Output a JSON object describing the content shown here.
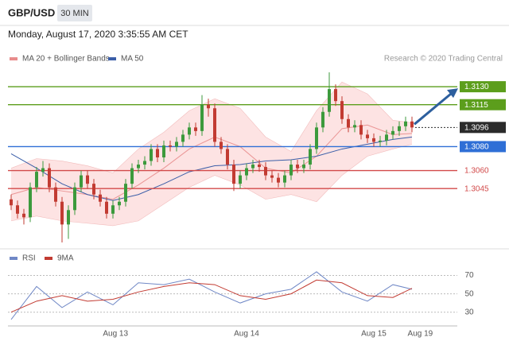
{
  "header": {
    "symbol": "GBP/USD",
    "interval": "30 MIN",
    "datetime": "Monday, August 17, 2020 3:35:55 AM CET"
  },
  "chart_data": [
    {
      "type": "candlestick",
      "credit": "Research © 2020 Trading Central",
      "up_color": "#3c9a3c",
      "down_color": "#c23b32",
      "open": [
        1.3036,
        1.3031,
        1.3024,
        1.3021,
        1.3046,
        1.3059,
        1.3062,
        1.3046,
        1.3034,
        1.3015,
        1.3027,
        1.3046,
        1.3056,
        1.3049,
        1.304,
        1.3034,
        1.3024,
        1.3031,
        1.3034,
        1.3049,
        1.3062,
        1.3065,
        1.3068,
        1.3078,
        1.3071,
        1.3081,
        1.308,
        1.3084,
        1.309,
        1.3096,
        1.3093,
        1.3115,
        1.3112,
        1.3084,
        1.3078,
        1.3065,
        1.3049,
        1.3056,
        1.3062,
        1.3065,
        1.3063,
        1.3056,
        1.3054,
        1.305,
        1.3056,
        1.3065,
        1.3062,
        1.3065,
        1.3078,
        1.3096,
        1.3109,
        1.3128,
        1.3118,
        1.3103,
        1.3096,
        1.3098,
        1.309,
        1.3087,
        1.3084,
        1.3085,
        1.309,
        1.3093,
        1.3097,
        1.3101
      ],
      "high": [
        1.304,
        1.3035,
        1.3028,
        1.305,
        1.3063,
        1.3068,
        1.3066,
        1.305,
        1.3038,
        1.3031,
        1.305,
        1.306,
        1.306,
        1.3053,
        1.3044,
        1.3038,
        1.3035,
        1.3038,
        1.3053,
        1.3066,
        1.3069,
        1.3072,
        1.3082,
        1.3082,
        1.3085,
        1.3085,
        1.3088,
        1.3094,
        1.31,
        1.31,
        1.3123,
        1.312,
        1.3116,
        1.3088,
        1.3082,
        1.3069,
        1.306,
        1.3066,
        1.3069,
        1.3069,
        1.3067,
        1.306,
        1.3058,
        1.306,
        1.3069,
        1.3069,
        1.3069,
        1.3082,
        1.31,
        1.3113,
        1.3142,
        1.3132,
        1.3122,
        1.3107,
        1.3102,
        1.3102,
        1.3094,
        1.3091,
        1.3089,
        1.3094,
        1.3097,
        1.3101,
        1.3105,
        1.3105
      ],
      "low": [
        1.3027,
        1.302,
        1.3015,
        1.3017,
        1.3042,
        1.3055,
        1.3042,
        1.303,
        1.3,
        1.3003,
        1.3023,
        1.3042,
        1.3045,
        1.3036,
        1.303,
        1.302,
        1.302,
        1.3027,
        1.303,
        1.3045,
        1.3058,
        1.3061,
        1.3064,
        1.3067,
        1.3067,
        1.3076,
        1.3076,
        1.308,
        1.3086,
        1.3089,
        1.3089,
        1.3105,
        1.308,
        1.3074,
        1.3061,
        1.3043,
        1.3045,
        1.3052,
        1.3058,
        1.3059,
        1.3052,
        1.305,
        1.3046,
        1.3046,
        1.3052,
        1.3058,
        1.3058,
        1.3061,
        1.3074,
        1.3092,
        1.3105,
        1.3114,
        1.3099,
        1.3092,
        1.3092,
        1.3086,
        1.3083,
        1.308,
        1.308,
        1.3081,
        1.3086,
        1.3089,
        1.3093,
        1.3092
      ],
      "close": [
        1.3031,
        1.3024,
        1.3021,
        1.3046,
        1.3059,
        1.3062,
        1.3046,
        1.3034,
        1.3015,
        1.3027,
        1.3046,
        1.3056,
        1.3049,
        1.304,
        1.3034,
        1.3024,
        1.3031,
        1.3034,
        1.3049,
        1.3062,
        1.3065,
        1.3068,
        1.3078,
        1.3071,
        1.3081,
        1.308,
        1.3084,
        1.309,
        1.3096,
        1.3093,
        1.3115,
        1.3112,
        1.3084,
        1.3078,
        1.3065,
        1.3049,
        1.3056,
        1.3062,
        1.3065,
        1.3063,
        1.3056,
        1.3054,
        1.305,
        1.3056,
        1.3065,
        1.3062,
        1.3065,
        1.3078,
        1.3096,
        1.3109,
        1.3128,
        1.3118,
        1.3103,
        1.3096,
        1.3098,
        1.309,
        1.3087,
        1.3084,
        1.3085,
        1.309,
        1.3093,
        1.3097,
        1.3101,
        1.3096
      ],
      "overlay_x": [
        0,
        4,
        8,
        12,
        16,
        20,
        24,
        28,
        32,
        36,
        40,
        44,
        48,
        52,
        56,
        60,
        63
      ],
      "bollinger": {
        "name": "MA 20 + Bollinger Bands",
        "color": "#e88c8c",
        "fill": "#fde3e3",
        "middle": [
          1.304,
          1.3046,
          1.3043,
          1.304,
          1.3036,
          1.3048,
          1.3062,
          1.3078,
          1.3088,
          1.308,
          1.3062,
          1.3058,
          1.3072,
          1.3095,
          1.3098,
          1.309,
          1.3091
        ],
        "upper": [
          1.3062,
          1.307,
          1.3068,
          1.3064,
          1.3058,
          1.3078,
          1.3092,
          1.311,
          1.312,
          1.3112,
          1.3088,
          1.3076,
          1.311,
          1.3134,
          1.3124,
          1.3102,
          1.31
        ],
        "lower": [
          1.3018,
          1.3022,
          1.3018,
          1.3016,
          1.3014,
          1.3018,
          1.3032,
          1.3046,
          1.3056,
          1.3048,
          1.3036,
          1.304,
          1.3034,
          1.3056,
          1.3072,
          1.3078,
          1.3082
        ]
      },
      "ma50": {
        "name": "MA 50",
        "color": "#3b5ea8",
        "values": [
          1.3074,
          1.3062,
          1.3049,
          1.304,
          1.3035,
          1.304,
          1.3049,
          1.3059,
          1.3064,
          1.3065,
          1.3068,
          1.3069,
          1.3072,
          1.3078,
          1.3082,
          1.3086,
          1.3088
        ]
      },
      "levels": [
        {
          "value": 1.313,
          "label": "1.3130",
          "color": "#5c9e1c",
          "boxed": true,
          "dashed": false
        },
        {
          "value": 1.3115,
          "label": "1.3115",
          "color": "#5c9e1c",
          "boxed": true,
          "dashed": false
        },
        {
          "value": 1.3096,
          "label": "1.3096",
          "color": "#2b2b2b",
          "boxed": true,
          "dashed": true
        },
        {
          "value": 1.308,
          "label": "1.3080",
          "color": "#2f6fd6",
          "boxed": true,
          "dashed": false
        },
        {
          "value": 1.306,
          "label": "1.3060",
          "color": "#d24a4a",
          "boxed": false,
          "dashed": false
        },
        {
          "value": 1.3045,
          "label": "1.3045",
          "color": "#d24a4a",
          "boxed": false,
          "dashed": false
        }
      ],
      "xlim": [
        -0.5,
        67
      ],
      "ylim": [
        1.2998,
        1.3144
      ],
      "xticks": [
        {
          "value": 16.4,
          "label": "Aug 13"
        },
        {
          "value": 37,
          "label": "Aug 14"
        },
        {
          "value": 57,
          "label": "Aug 15"
        },
        {
          "value": 64.3,
          "label": "Aug 19"
        }
      ]
    },
    {
      "type": "line",
      "x": [
        0,
        4,
        8,
        12,
        16,
        20,
        24,
        28,
        32,
        36,
        40,
        44,
        48,
        52,
        56,
        60,
        63
      ],
      "series": [
        {
          "name": "RSI",
          "color": "#7088c6",
          "values": [
            22,
            58,
            35,
            52,
            38,
            62,
            60,
            66,
            52,
            40,
            50,
            55,
            74,
            52,
            42,
            60,
            55
          ]
        },
        {
          "name": "9MA",
          "color": "#c23b32",
          "values": [
            30,
            42,
            48,
            42,
            44,
            52,
            58,
            62,
            60,
            48,
            44,
            50,
            65,
            62,
            48,
            46,
            56
          ]
        }
      ],
      "xlim": [
        -0.5,
        67
      ],
      "ylim": [
        15,
        80
      ],
      "yticks": [
        30,
        50,
        70
      ],
      "grid": true
    }
  ]
}
